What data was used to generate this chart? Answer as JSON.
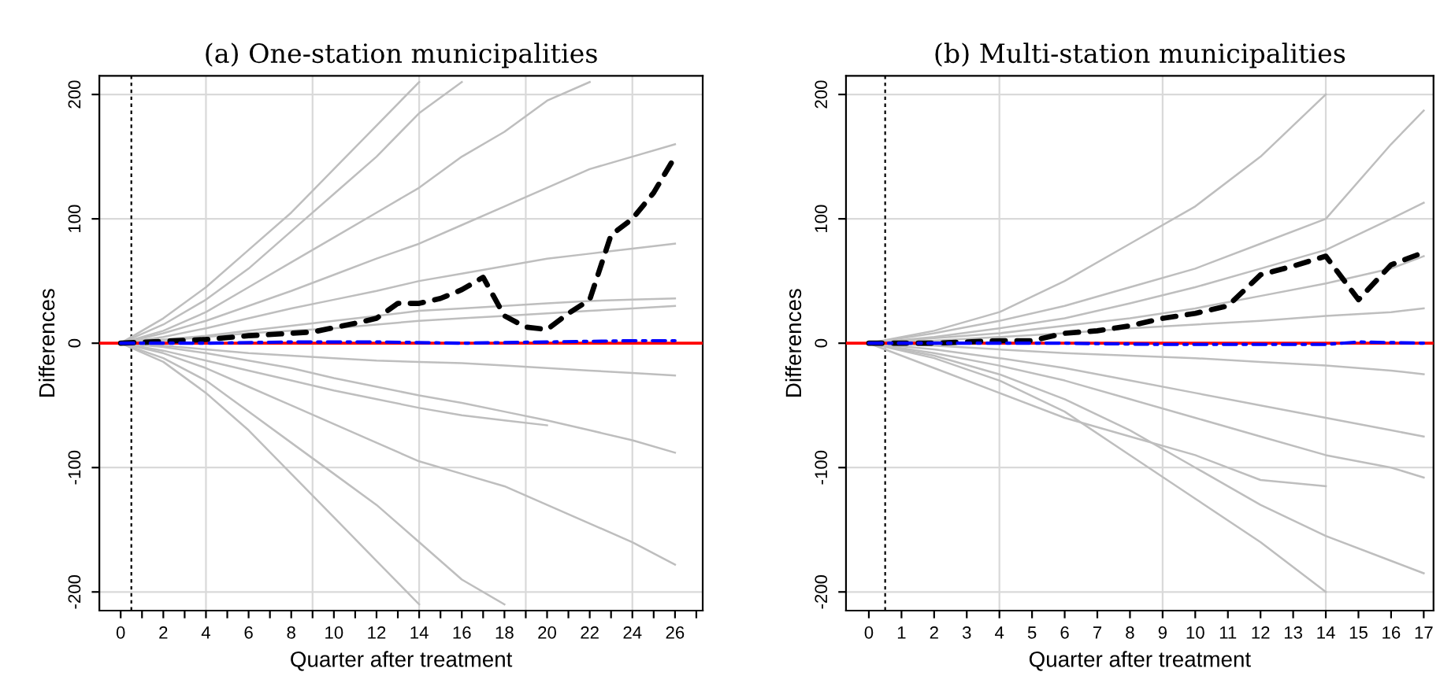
{
  "chart_data": [
    {
      "type": "line",
      "title": "(a) One-station municipalities",
      "xlabel": "Quarter after treatment",
      "ylabel": "Differences",
      "xlim": [
        -1,
        27.3
      ],
      "ylim": [
        -215,
        215
      ],
      "yticks": [
        -200,
        -100,
        0,
        100,
        200
      ],
      "xticks": [
        0,
        {
          "value": 1,
          "label": null
        },
        2,
        {
          "value": 3,
          "label": null
        },
        4,
        {
          "value": 5,
          "label": null
        },
        6,
        {
          "value": 7,
          "label": null
        },
        8,
        {
          "value": 9,
          "label": null
        },
        10,
        {
          "value": 11,
          "label": null
        },
        12,
        {
          "value": 13,
          "label": null
        },
        14,
        {
          "value": 15,
          "label": null
        },
        16,
        {
          "value": 17,
          "label": null
        },
        18,
        {
          "value": 19,
          "label": null
        },
        20,
        {
          "value": 21,
          "label": null
        },
        22,
        {
          "value": 23,
          "label": null
        },
        24,
        {
          "value": 25,
          "label": null
        },
        26,
        {
          "value": 27,
          "label": null
        }
      ],
      "grid": "y",
      "marker": "none",
      "ref_lines": [
        {
          "axis": "x",
          "value": 4,
          "color": "#d9d9d9",
          "line_style": "solid"
        },
        {
          "axis": "x",
          "value": 9,
          "color": "#d9d9d9",
          "line_style": "solid"
        },
        {
          "axis": "x",
          "value": 14,
          "color": "#d9d9d9",
          "line_style": "solid"
        },
        {
          "axis": "x",
          "value": 19,
          "color": "#d9d9d9",
          "line_style": "solid"
        },
        {
          "axis": "x",
          "value": 24,
          "color": "#d9d9d9",
          "line_style": "solid"
        },
        {
          "axis": "y",
          "value": 0,
          "color": "#ff0000",
          "line_style": "solid"
        },
        {
          "axis": "x",
          "value": 0.5,
          "color": "#000000",
          "line_style": "dotted"
        }
      ],
      "series": [
        {
          "color": "#bebebe",
          "line_style": "solid",
          "x": [
            0,
            2,
            4,
            6,
            8,
            10,
            12,
            14,
            16
          ],
          "values": [
            0,
            15,
            35,
            60,
            90,
            120,
            150,
            185,
            210
          ]
        },
        {
          "color": "#bebebe",
          "line_style": "solid",
          "x": [
            0,
            2,
            4,
            6,
            8,
            10,
            12,
            14,
            16,
            18,
            20,
            22
          ],
          "values": [
            0,
            10,
            25,
            45,
            65,
            85,
            105,
            125,
            150,
            170,
            195,
            210
          ]
        },
        {
          "color": "#bebebe",
          "line_style": "solid",
          "x": [
            0,
            2,
            4,
            6,
            8,
            10,
            12,
            14,
            16,
            18,
            20,
            22,
            24,
            26
          ],
          "values": [
            0,
            8,
            18,
            30,
            42,
            55,
            68,
            80,
            95,
            110,
            125,
            140,
            150,
            160
          ]
        },
        {
          "color": "#bebebe",
          "line_style": "solid",
          "x": [
            0,
            2,
            4,
            6,
            8,
            10,
            12,
            14,
            16,
            18,
            20,
            22,
            24,
            26
          ],
          "values": [
            0,
            5,
            12,
            20,
            28,
            35,
            42,
            50,
            56,
            62,
            68,
            72,
            76,
            80
          ]
        },
        {
          "color": "#bebebe",
          "line_style": "solid",
          "x": [
            0,
            2,
            4,
            6,
            8,
            10,
            12,
            14,
            16,
            18,
            20,
            22,
            24,
            26
          ],
          "values": [
            0,
            3,
            6,
            10,
            14,
            18,
            22,
            26,
            28,
            30,
            32,
            34,
            35,
            36
          ]
        },
        {
          "color": "#bebebe",
          "line_style": "solid",
          "x": [
            0,
            2,
            4,
            6,
            8,
            10,
            12,
            14,
            16,
            18,
            20,
            22,
            24,
            26
          ],
          "values": [
            0,
            2,
            5,
            8,
            10,
            12,
            15,
            18,
            20,
            22,
            24,
            26,
            28,
            30
          ]
        },
        {
          "color": "#bebebe",
          "line_style": "solid",
          "x": [
            0,
            2,
            4,
            6,
            8,
            10,
            12,
            14,
            16,
            18,
            20,
            22,
            24,
            26
          ],
          "values": [
            0,
            -2,
            -5,
            -8,
            -10,
            -12,
            -14,
            -15,
            -16,
            -18,
            -20,
            -22,
            -24,
            -26
          ]
        },
        {
          "color": "#bebebe",
          "line_style": "solid",
          "x": [
            0,
            2,
            4,
            6,
            8,
            10,
            12,
            14,
            16,
            18,
            20
          ],
          "values": [
            0,
            -6,
            -14,
            -22,
            -30,
            -38,
            -45,
            -52,
            -58,
            -62,
            -66
          ]
        },
        {
          "color": "#bebebe",
          "line_style": "solid",
          "x": [
            0,
            2,
            4,
            6,
            8,
            10,
            12,
            14,
            16,
            18,
            20,
            22,
            24,
            26
          ],
          "values": [
            0,
            -3,
            -8,
            -14,
            -20,
            -28,
            -35,
            -42,
            -48,
            -55,
            -62,
            -70,
            -78,
            -88
          ]
        },
        {
          "color": "#bebebe",
          "line_style": "solid",
          "x": [
            0,
            2,
            4,
            6,
            8,
            10,
            12,
            14,
            16,
            18,
            20,
            22,
            24,
            26
          ],
          "values": [
            0,
            -8,
            -20,
            -35,
            -50,
            -65,
            -80,
            -95,
            -105,
            -115,
            -130,
            -145,
            -160,
            -178
          ]
        },
        {
          "color": "#bebebe",
          "line_style": "solid",
          "x": [
            0,
            2,
            4,
            6,
            8,
            10,
            12,
            14,
            16,
            18
          ],
          "values": [
            0,
            -12,
            -30,
            -55,
            -80,
            -105,
            -130,
            -160,
            -190,
            -210
          ]
        },
        {
          "color": "#bebebe",
          "line_style": "solid",
          "x": [
            0,
            2,
            4,
            6,
            8,
            10,
            12,
            14
          ],
          "values": [
            0,
            -15,
            -40,
            -70,
            -105,
            -140,
            -175,
            -210
          ]
        },
        {
          "color": "#bebebe",
          "line_style": "solid",
          "x": [
            0,
            2,
            4,
            6,
            8,
            10,
            12,
            14
          ],
          "values": [
            0,
            20,
            45,
            75,
            105,
            140,
            175,
            210
          ]
        },
        {
          "color": "#000000",
          "line_style": "dashed",
          "x": [
            0,
            4,
            6,
            9,
            11,
            12,
            13,
            14,
            15,
            16,
            17,
            18,
            19,
            20,
            21,
            22,
            23,
            24,
            25,
            26
          ],
          "values": [
            0,
            3,
            6,
            9,
            16,
            20,
            32,
            32,
            36,
            43,
            53,
            22,
            13,
            11,
            24,
            35,
            87,
            100,
            121,
            150
          ]
        },
        {
          "color": "#0000ff",
          "line_style": "dashdot",
          "x": [
            0,
            4,
            8,
            12,
            16,
            20,
            24,
            26
          ],
          "values": [
            0,
            0,
            1,
            1,
            0,
            1,
            2,
            2
          ]
        }
      ]
    },
    {
      "type": "line",
      "title": "(b) Multi-station municipalities",
      "xlabel": "Quarter after treatment",
      "ylabel": "Differences",
      "xlim": [
        -0.7,
        17.3
      ],
      "ylim": [
        -215,
        215
      ],
      "yticks": [
        -200,
        -100,
        0,
        100,
        200
      ],
      "xticks": [
        0,
        1,
        2,
        3,
        4,
        5,
        6,
        7,
        8,
        9,
        10,
        11,
        12,
        13,
        14,
        15,
        16,
        17
      ],
      "grid": "y",
      "marker": "none",
      "ref_lines": [
        {
          "axis": "x",
          "value": 4,
          "color": "#d9d9d9",
          "line_style": "solid"
        },
        {
          "axis": "x",
          "value": 9,
          "color": "#d9d9d9",
          "line_style": "solid"
        },
        {
          "axis": "x",
          "value": 14,
          "color": "#d9d9d9",
          "line_style": "solid"
        },
        {
          "axis": "y",
          "value": 0,
          "color": "#ff0000",
          "line_style": "solid"
        },
        {
          "axis": "x",
          "value": 0.5,
          "color": "#000000",
          "line_style": "dotted"
        }
      ],
      "series": [
        {
          "color": "#bebebe",
          "line_style": "solid",
          "x": [
            0,
            2,
            4,
            6,
            8,
            10,
            12,
            14
          ],
          "values": [
            0,
            10,
            25,
            50,
            80,
            110,
            150,
            200
          ]
        },
        {
          "color": "#bebebe",
          "line_style": "solid",
          "x": [
            0,
            2,
            4,
            6,
            8,
            10,
            12,
            14,
            16,
            17
          ],
          "values": [
            0,
            8,
            18,
            30,
            45,
            60,
            80,
            100,
            160,
            187
          ]
        },
        {
          "color": "#bebebe",
          "line_style": "solid",
          "x": [
            0,
            2,
            4,
            6,
            8,
            10,
            12,
            14,
            16,
            17
          ],
          "values": [
            0,
            5,
            12,
            20,
            32,
            45,
            60,
            75,
            100,
            113
          ]
        },
        {
          "color": "#bebebe",
          "line_style": "solid",
          "x": [
            0,
            2,
            4,
            6,
            8,
            10,
            12,
            14,
            16,
            17
          ],
          "values": [
            0,
            4,
            8,
            14,
            20,
            28,
            38,
            48,
            60,
            70
          ]
        },
        {
          "color": "#bebebe",
          "line_style": "solid",
          "x": [
            0,
            2,
            4,
            6,
            8,
            10,
            12,
            14,
            16,
            17
          ],
          "values": [
            0,
            2,
            5,
            8,
            12,
            15,
            18,
            22,
            25,
            28
          ]
        },
        {
          "color": "#bebebe",
          "line_style": "solid",
          "x": [
            0,
            2,
            4,
            6,
            8,
            10,
            12,
            14,
            16,
            17
          ],
          "values": [
            0,
            -2,
            -5,
            -8,
            -10,
            -12,
            -15,
            -18,
            -22,
            -25
          ]
        },
        {
          "color": "#bebebe",
          "line_style": "solid",
          "x": [
            0,
            2,
            4,
            6,
            8,
            10,
            12,
            14,
            16,
            17
          ],
          "values": [
            0,
            -5,
            -12,
            -20,
            -30,
            -40,
            -50,
            -60,
            -70,
            -75
          ]
        },
        {
          "color": "#bebebe",
          "line_style": "solid",
          "x": [
            0,
            2,
            4,
            6,
            8,
            10,
            12,
            14,
            16,
            17
          ],
          "values": [
            0,
            -8,
            -18,
            -30,
            -45,
            -60,
            -75,
            -90,
            -100,
            -108
          ]
        },
        {
          "color": "#bebebe",
          "line_style": "solid",
          "x": [
            0,
            2,
            4,
            6,
            8,
            10,
            12,
            14
          ],
          "values": [
            0,
            -12,
            -30,
            -55,
            -90,
            -125,
            -160,
            -200
          ]
        },
        {
          "color": "#bebebe",
          "line_style": "solid",
          "x": [
            0,
            2,
            4,
            6,
            8,
            10,
            12,
            14,
            16,
            17
          ],
          "values": [
            0,
            -10,
            -25,
            -45,
            -70,
            -100,
            -130,
            -155,
            -175,
            -185
          ]
        },
        {
          "color": "#bebebe",
          "line_style": "solid",
          "x": [
            0,
            2,
            4,
            6,
            8,
            10,
            12,
            14
          ],
          "values": [
            0,
            -20,
            -40,
            -60,
            -75,
            -90,
            -110,
            -115
          ]
        },
        {
          "color": "#000000",
          "line_style": "dashed",
          "x": [
            0,
            1,
            2,
            3,
            4,
            5,
            6,
            7,
            8,
            9,
            10,
            11,
            12,
            13,
            14,
            15,
            16,
            17
          ],
          "values": [
            0,
            0,
            0,
            1,
            2,
            2,
            8,
            10,
            14,
            20,
            24,
            30,
            55,
            62,
            70,
            35,
            63,
            73
          ]
        },
        {
          "color": "#0000ff",
          "line_style": "dashdot",
          "x": [
            0,
            3,
            6,
            9,
            12,
            14,
            15,
            17
          ],
          "values": [
            0,
            0,
            0,
            -1,
            -1,
            -1,
            1,
            0
          ]
        }
      ]
    }
  ]
}
